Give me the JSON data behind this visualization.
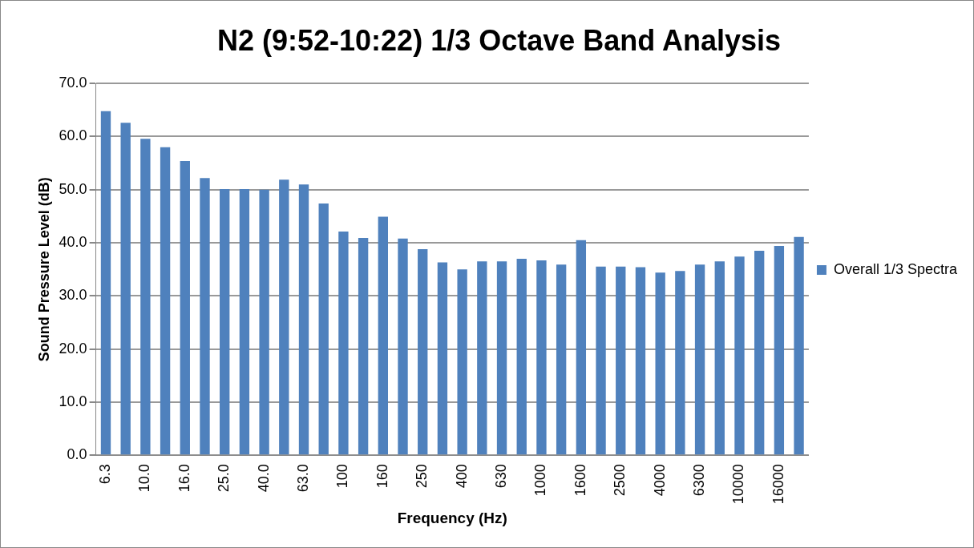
{
  "chart_data": {
    "type": "bar",
    "title": "N2 (9:52-10:22) 1/3 Octave Band Analysis",
    "xlabel": "Frequency (Hz)",
    "ylabel": "Sound Pressure Level (dB)",
    "categories": [
      "6.3",
      null,
      "10.0",
      null,
      "16.0",
      null,
      "25.0",
      null,
      "40.0",
      null,
      "63.0",
      null,
      "100",
      null,
      "160",
      null,
      "250",
      null,
      "400",
      null,
      "630",
      null,
      "1000",
      null,
      "1600",
      null,
      "2500",
      null,
      "4000",
      null,
      "6300",
      null,
      "10000",
      null,
      "16000",
      null
    ],
    "series": [
      {
        "name": "Overall 1/3 Spectra",
        "color": "#4f81bd",
        "values": [
          64.8,
          62.6,
          59.6,
          58.0,
          55.4,
          52.2,
          50.1,
          50.1,
          50.0,
          51.9,
          51.0,
          47.4,
          42.1,
          40.9,
          44.9,
          40.8,
          38.8,
          36.3,
          35.0,
          36.5,
          36.5,
          37.0,
          36.7,
          35.9,
          40.5,
          35.5,
          35.5,
          35.4,
          34.4,
          34.7,
          35.9,
          36.5,
          37.4,
          38.5,
          39.4,
          41.1
        ]
      }
    ],
    "ylim": [
      0,
      70
    ],
    "yticks": [
      {
        "value": 0,
        "label": "0.0"
      },
      {
        "value": 10,
        "label": "10.0"
      },
      {
        "value": 20,
        "label": "20.0"
      },
      {
        "value": 30,
        "label": "30.0"
      },
      {
        "value": 40,
        "label": "40.0"
      },
      {
        "value": 50,
        "label": "50.0"
      },
      {
        "value": 60,
        "label": "60.0"
      },
      {
        "value": 70,
        "label": "70.0"
      }
    ],
    "grid": "y",
    "legend": "right"
  }
}
